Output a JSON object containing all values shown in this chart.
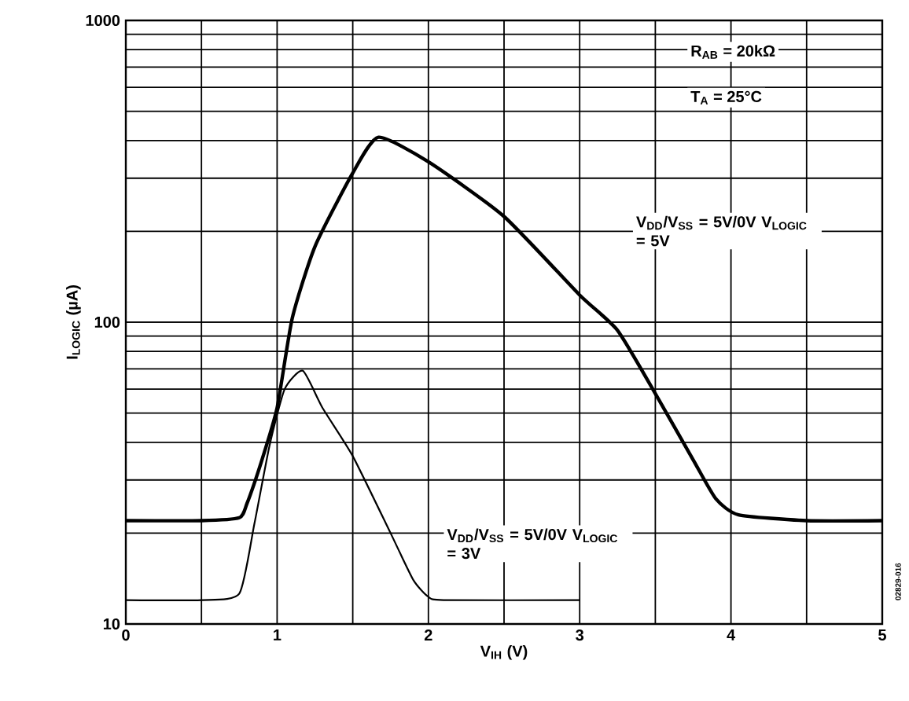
{
  "chart_data": {
    "type": "line",
    "xlabel": "V$_{IH}$ (V)",
    "ylabel": "I$_{LOGIC}$ (µA)",
    "xlim": [
      0,
      5
    ],
    "ylim": [
      10,
      1000
    ],
    "log": "y",
    "grid": true,
    "legend": false,
    "marker": "none",
    "line_style": "solid",
    "xticks": [
      0,
      {
        "value": 0.5,
        "label": null
      },
      1,
      {
        "value": 1.5,
        "label": null
      },
      2,
      {
        "value": 2.5,
        "label": null
      },
      3,
      {
        "value": 3.5,
        "label": null
      },
      4,
      {
        "value": 4.5,
        "label": null
      },
      5
    ],
    "yticks": [
      10,
      100,
      1000
    ],
    "series": [
      {
        "name": "V$_{DD}$/V$_{SS}$ = 5V/0V V$_{LOGIC}$ = 5V",
        "color": "#000000",
        "x": [
          0,
          0.5,
          0.75,
          0.8,
          0.9,
          1.0,
          1.1,
          1.25,
          1.5,
          1.67,
          2.0,
          2.5,
          3.0,
          3.25,
          3.5,
          3.75,
          3.9,
          4.05,
          4.5,
          5
        ],
        "values": [
          22,
          22,
          22.5,
          25,
          35,
          52,
          103,
          178,
          312,
          410,
          340,
          224,
          123,
          94,
          58,
          35,
          26,
          23,
          22,
          22
        ]
      },
      {
        "name": "V$_{DD}$/V$_{SS}$ = 5V/0V V$_{LOGIC}$ = 3V",
        "color": "#000000",
        "x": [
          0,
          0.5,
          0.75,
          0.85,
          0.95,
          1.05,
          1.17,
          1.3,
          1.5,
          1.75,
          1.9,
          2.0,
          2.1,
          3.0
        ],
        "values": [
          12,
          12,
          12.6,
          21.5,
          39,
          60,
          69,
          52,
          36,
          20,
          14,
          12.3,
          12,
          12
        ]
      }
    ],
    "annotations": [
      "R$_{AB}$ = 20kΩ",
      "T$_{A}$ = 25°C",
      "02829-016"
    ]
  }
}
